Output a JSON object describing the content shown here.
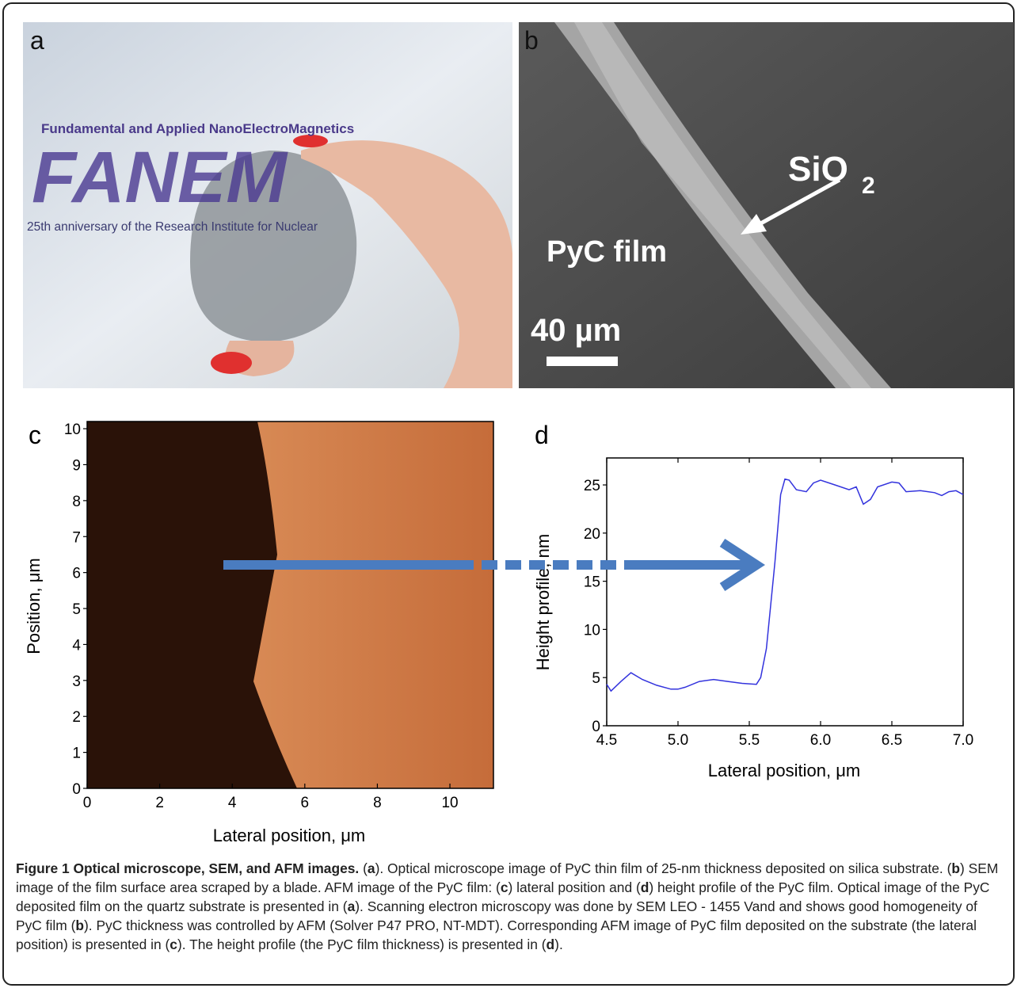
{
  "photos": [
    {
      "panel_label": "a",
      "texts": [
        "Fundamental and Applied NanoElectroMagnetics",
        "FANEM",
        "25th anniversary of the Research Institute for Nuclear"
      ]
    },
    {
      "panel_label": "b",
      "texts": [
        "SiO",
        "2",
        "PyC film",
        "40 µm"
      ]
    }
  ],
  "chart_data": [
    {
      "type": "heatmap",
      "panel_label": "c",
      "x_label": "Lateral position, μm",
      "y_label": "Position, μm",
      "xlim": [
        0,
        11.2
      ],
      "ylim": [
        0,
        10.2
      ],
      "xticks": [
        0,
        2,
        4,
        6,
        8,
        10
      ],
      "yticks": [
        0,
        1,
        2,
        3,
        4,
        5,
        6,
        7,
        8,
        9,
        10
      ]
    },
    {
      "type": "line",
      "panel_label": "d",
      "x_label": "Lateral position, μm",
      "y_label": "Height profile, nm",
      "color": "#3333dd",
      "xlim": [
        4.5,
        7.0
      ],
      "ylim": [
        0,
        27.8
      ],
      "xticks": [
        4.5,
        {
          "value": 5,
          "label": "5.0"
        },
        5.5,
        {
          "value": 6,
          "label": "6.0"
        },
        6.5,
        {
          "value": 7,
          "label": "7.0"
        }
      ],
      "yticks": [
        0,
        5,
        10,
        15,
        20,
        25
      ],
      "x": [
        4.5,
        4.53,
        4.6,
        4.67,
        4.75,
        4.85,
        4.95,
        5.0,
        5.05,
        5.15,
        5.25,
        5.35,
        5.45,
        5.55,
        5.58,
        5.62,
        5.68,
        5.72,
        5.75,
        5.78,
        5.83,
        5.9,
        5.95,
        6.0,
        6.1,
        6.2,
        6.25,
        6.3,
        6.35,
        6.4,
        6.5,
        6.55,
        6.6,
        6.7,
        6.8,
        6.85,
        6.9,
        6.95,
        7.0
      ],
      "values": [
        4.3,
        3.6,
        4.6,
        5.5,
        4.8,
        4.2,
        3.8,
        3.8,
        4.0,
        4.6,
        4.8,
        4.6,
        4.4,
        4.3,
        5.0,
        8,
        17,
        24,
        25.6,
        25.5,
        24.5,
        24.3,
        25.2,
        25.5,
        25.0,
        24.5,
        24.8,
        23.0,
        23.5,
        24.8,
        25.3,
        25.2,
        24.3,
        24.4,
        24.2,
        23.9,
        24.3,
        24.4,
        24.0
      ]
    }
  ],
  "caption": {
    "title": "Figure 1 Optical microscope, SEM, and AFM images.",
    "body": [
      "(",
      "a",
      "). Optical microscope image of PyC thin film of 25-nm thickness deposited on silica substrate. (",
      "b",
      ") SEM image of the film surface area scraped by a blade. AFM image of the PyC film: (",
      "c",
      ") lateral position and (",
      "d",
      ") height profile of the PyC film. Optical image of the PyC deposited film on the quartz substrate is presented in (",
      "a",
      "). Scanning electron microscopy was done by SEM LEO - 1455 Vand and shows good homogeneity of PyC film (",
      "b",
      "). PyC thickness was controlled by AFM (Solver P47 PRO, NT-MDT). Corresponding AFM image of PyC film deposited on the substrate (the lateral position) is presented in (",
      "c",
      "). The height profile (the PyC film thickness) is presented in (",
      "d",
      ")."
    ]
  }
}
